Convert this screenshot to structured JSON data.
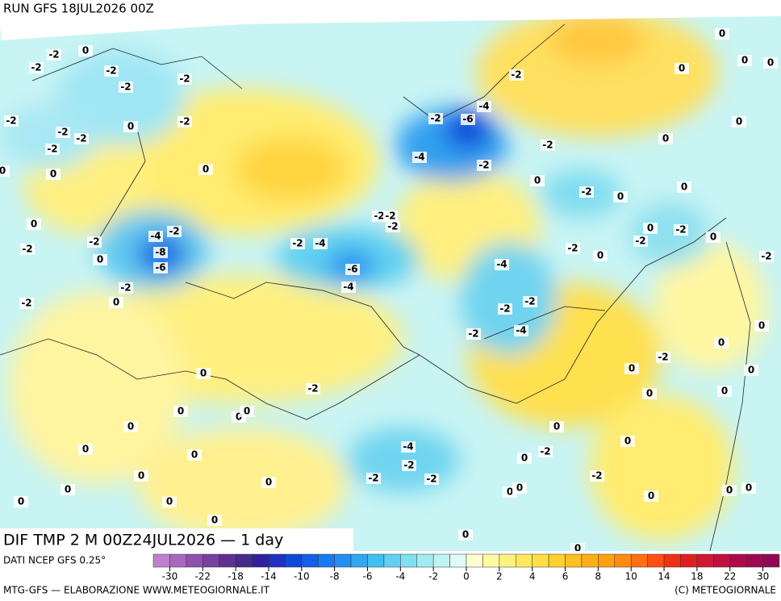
{
  "header": {
    "run": "RUN GFS 18JUL2026 00Z",
    "field": "DIF TMP 2 M 00Z24JUL2026 — 1 day"
  },
  "footer": {
    "source": "DATI NCEP GFS 0.25°",
    "credit": "MTG-GFS — ELABORAZIONE WWW.METEOGIORNALE.IT",
    "copyright": "(C) METEOGIORNALE"
  },
  "colorbar": {
    "colors": [
      "#c080d0",
      "#a868c0",
      "#9050b0",
      "#7840a0",
      "#603090",
      "#482888",
      "#3020a0",
      "#2030c0",
      "#1048d8",
      "#1060e8",
      "#1878f0",
      "#2090f0",
      "#30a8f0",
      "#40c0f0",
      "#60d0f0",
      "#80e0f0",
      "#a0ecf0",
      "#c0f4f4",
      "#e0fafa",
      "#ffffd0",
      "#fffaa0",
      "#fff080",
      "#ffe860",
      "#ffe040",
      "#ffd030",
      "#ffc020",
      "#ffb018",
      "#ffa010",
      "#ff8c10",
      "#ff7010",
      "#ff5010",
      "#f03010",
      "#e02020",
      "#d01830",
      "#c01040",
      "#b00848",
      "#a00850",
      "#900858"
    ],
    "labels": [
      "-30",
      "-22",
      "-18",
      "-14",
      "-10",
      "-8",
      "-6",
      "-4",
      "-2",
      "0",
      "2",
      "4",
      "6",
      "8",
      "10",
      "14",
      "18",
      "22",
      "30"
    ]
  },
  "map": {
    "contour_labels": [
      "-2",
      "0",
      "-2",
      "-2",
      "-2",
      "-2",
      "-2",
      "0",
      "-2",
      "-2",
      "-2",
      "-2",
      "0",
      "0",
      "-2",
      "-6",
      "-4",
      "-2",
      "-4",
      "-2",
      "-2",
      "0",
      "-2",
      "0",
      "0",
      "0",
      "0",
      "0",
      "0",
      "0",
      "0",
      "-2",
      "-2",
      "-2",
      "0",
      "-2",
      "-2",
      "-4",
      "-2",
      "-8",
      "-6",
      "0",
      "-2",
      "-4",
      "-6",
      "-4",
      "-2",
      "-2",
      "-4",
      "-2",
      "0",
      "-2",
      "0",
      "-2",
      "0",
      "-2",
      "-2",
      "-2",
      "-4",
      "-2",
      "0",
      "-2",
      "0",
      "0",
      "0",
      "0",
      "0",
      "-2",
      "0",
      "0",
      "0",
      "0",
      "0",
      "0",
      "0",
      "0",
      "-4",
      "-2",
      "-2",
      "-2",
      "0",
      "0",
      "-2",
      "0",
      "-2",
      "0",
      "0",
      "0",
      "0",
      "0",
      "0",
      "0",
      "0",
      "0",
      "0",
      "0",
      "0",
      "0",
      "0"
    ]
  }
}
